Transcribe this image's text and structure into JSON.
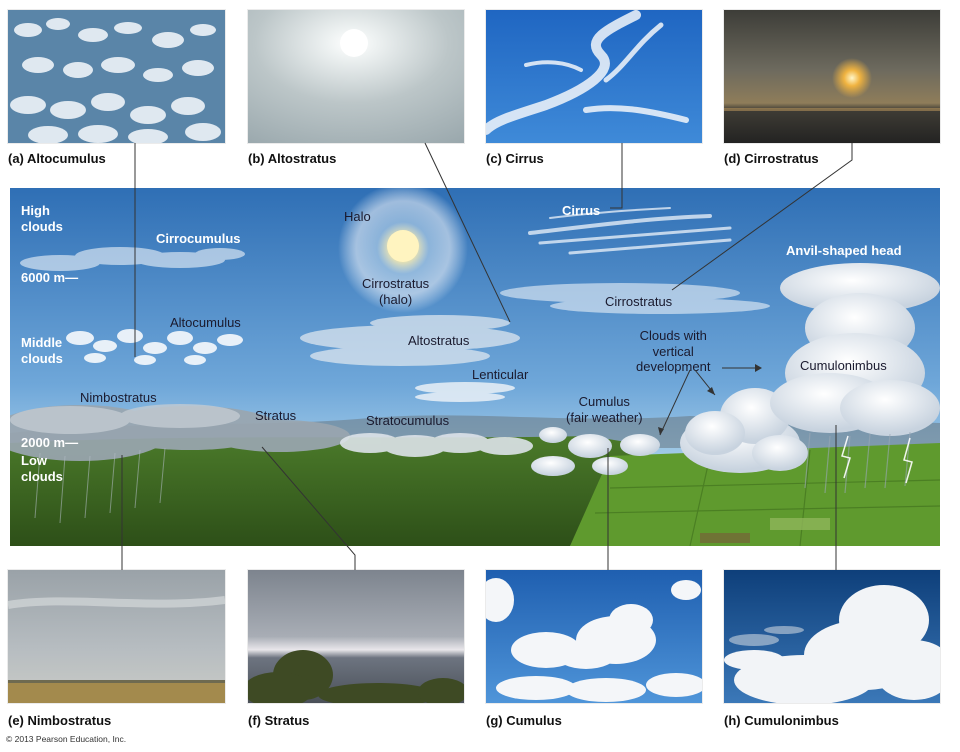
{
  "top_photos": [
    {
      "caption": "(a) Altocumulus"
    },
    {
      "caption": "(b) Altostratus"
    },
    {
      "caption": "(c) Cirrus"
    },
    {
      "caption": "(d) Cirrostratus"
    }
  ],
  "bottom_photos": [
    {
      "caption": "(e) Nimbostratus"
    },
    {
      "caption": "(f) Stratus"
    },
    {
      "caption": "(g) Cumulus"
    },
    {
      "caption": "(h) Cumulonimbus"
    }
  ],
  "scene": {
    "high_clouds": "High\nclouds",
    "alt_6000": "6000 m—",
    "middle_clouds": "Middle\nclouds",
    "alt_2000": "2000 m—",
    "low_clouds": "Low\nclouds",
    "cirrocumulus": "Cirrocumulus",
    "halo": "Halo",
    "cirrostratus_halo": "Cirrostratus\n(halo)",
    "cirrus": "Cirrus",
    "anvil_head": "Anvil-shaped head",
    "cirrostratus": "Cirrostratus",
    "altocumulus": "Altocumulus",
    "altostratus": "Altostratus",
    "vertical_dev": "Clouds with\nvertical\ndevelopment",
    "cumulonimbus": "Cumulonimbus",
    "lenticular": "Lenticular",
    "nimbostratus": "Nimbostratus",
    "stratus": "Stratus",
    "stratocumulus": "Stratocumulus",
    "cumulus_fair": "Cumulus\n(fair weather)"
  },
  "copyright": "© 2013 Pearson Education, Inc.",
  "colors": {
    "sky_top": "#2f6fb5",
    "sky_bottom": "#a9d0ea",
    "forest": "#3f6b22",
    "field": "#5f9a2e"
  }
}
